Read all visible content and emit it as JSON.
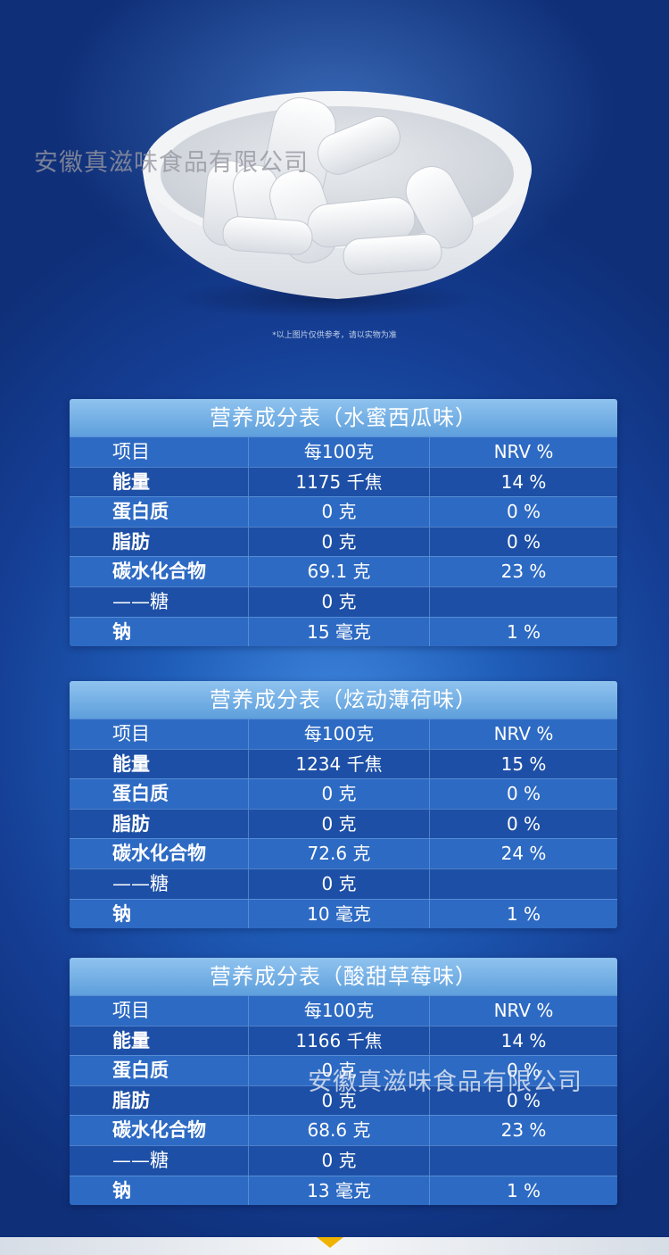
{
  "watermark": "安徽真滋味食品有限公司",
  "image_note": "*以上图片仅供参考，请以实物为准",
  "tables": [
    {
      "title": "营养成分表（水蜜西瓜味）",
      "header": [
        "项目",
        "每100克",
        "NRV %"
      ],
      "rows": [
        [
          "能量",
          "1175 千焦",
          "14 %"
        ],
        [
          "蛋白质",
          "0 克",
          "0 %"
        ],
        [
          "脂肪",
          "0 克",
          "0 %"
        ],
        [
          "碳水化合物",
          "69.1 克",
          "23 %"
        ],
        [
          "——糖",
          "0 克",
          ""
        ],
        [
          "钠",
          "15 毫克",
          "1 %"
        ]
      ]
    },
    {
      "title": "营养成分表（炫动薄荷味）",
      "header": [
        "项目",
        "每100克",
        "NRV %"
      ],
      "rows": [
        [
          "能量",
          "1234 千焦",
          "15 %"
        ],
        [
          "蛋白质",
          "0 克",
          "0 %"
        ],
        [
          "脂肪",
          "0 克",
          "0 %"
        ],
        [
          "碳水化合物",
          "72.6 克",
          "24 %"
        ],
        [
          "——糖",
          "0 克",
          ""
        ],
        [
          "钠",
          "10 毫克",
          "1 %"
        ]
      ]
    },
    {
      "title": "营养成分表（酸甜草莓味）",
      "header": [
        "项目",
        "每100克",
        "NRV %"
      ],
      "rows": [
        [
          "能量",
          "1166 千焦",
          "14 %"
        ],
        [
          "蛋白质",
          "0 克",
          "0 %"
        ],
        [
          "脂肪",
          "0 克",
          "0 %"
        ],
        [
          "碳水化合物",
          "68.6 克",
          "23 %"
        ],
        [
          "——糖",
          "0 克",
          ""
        ],
        [
          "钠",
          "13 毫克",
          "1 %"
        ]
      ]
    }
  ],
  "colors": {
    "background": "#1f5db8",
    "title_bar": "#6faee6",
    "row_light": "#2d6ac3",
    "row_dark": "#1d4fa6",
    "accent_arrow": "#f0b400"
  }
}
